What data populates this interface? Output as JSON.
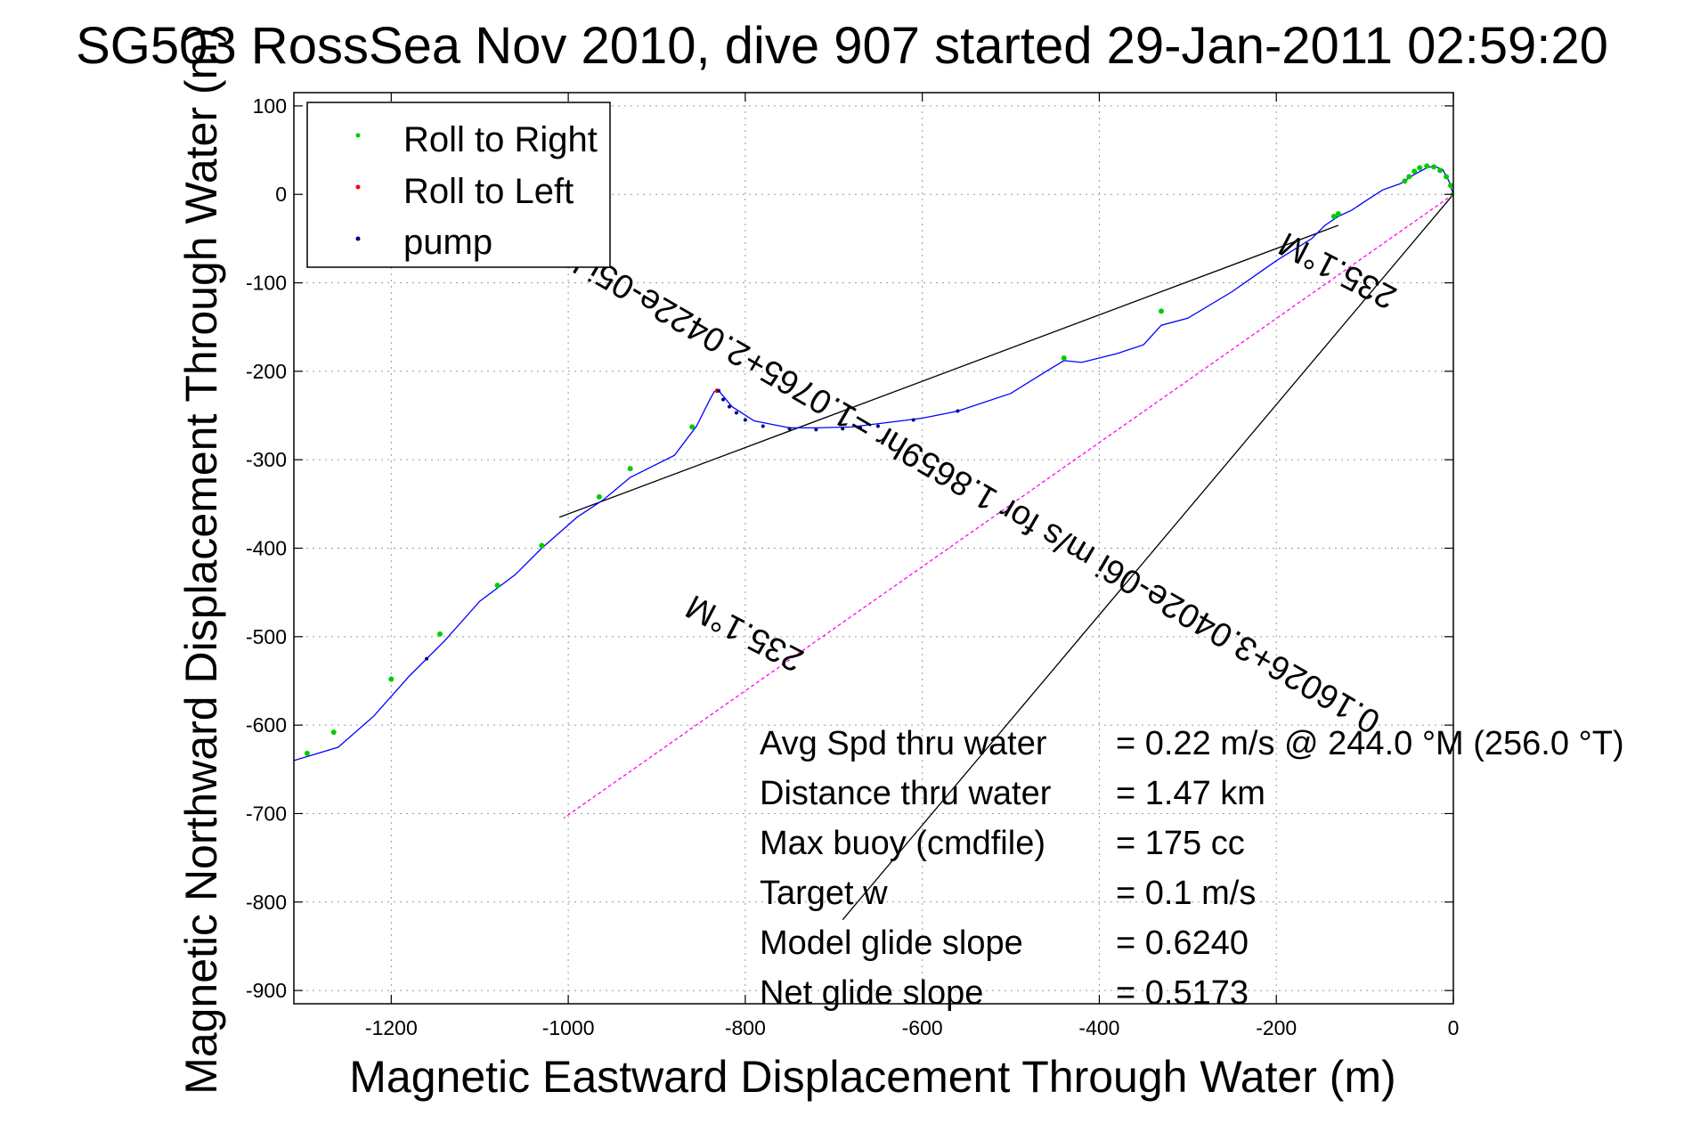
{
  "figure": {
    "title": "SG503 RossSea Nov 2010, dive 907 started 29-Jan-2011 02:59:20",
    "xlabel": "Magnetic Eastward Displacement Through Water (m)",
    "ylabel": "Magnetic Northward Displacement Through Water (m)"
  },
  "colors": {
    "track": "#0000ff",
    "roll_right": "#00cc00",
    "roll_left": "#ff0000",
    "pump": "#000080",
    "heading_line": "#ff00ff",
    "axes": "#000000"
  },
  "chart_data": {
    "type": "scatter",
    "xlim": [
      -1310,
      0
    ],
    "ylim": [
      -915,
      115
    ],
    "x_ticks": [
      -1200,
      -1000,
      -800,
      -600,
      -400,
      -200,
      0
    ],
    "x_tick_labels": [
      "-1200",
      "-1000",
      "-800",
      "-600",
      "-400",
      "-200",
      "0"
    ],
    "y_ticks": [
      100,
      0,
      -100,
      -200,
      -300,
      -400,
      -500,
      -600,
      -700,
      -800,
      -900
    ],
    "y_tick_labels": [
      "100",
      "0",
      "-100",
      "-200",
      "-300",
      "-400",
      "-500",
      "-600",
      "-700",
      "-800",
      "-900"
    ],
    "grid": true,
    "legend_position": "top-left",
    "legend": [
      {
        "name": "Roll to Right",
        "color": "#00cc00"
      },
      {
        "name": "Roll to Left",
        "color": "#ff0000"
      },
      {
        "name": "pump",
        "color": "#000080"
      }
    ],
    "track": {
      "x": [
        0,
        -5,
        -12,
        -22,
        -30,
        -45,
        -60,
        -80,
        -100,
        -115,
        -130,
        -145,
        -160,
        -200,
        -250,
        -300,
        -330,
        -350,
        -380,
        -420,
        -440,
        -460,
        -500,
        -560,
        -600,
        -640,
        -680,
        -720,
        -750,
        -790,
        -815,
        -830,
        -835,
        -840,
        -855,
        -880,
        -930,
        -960,
        -990,
        -1030,
        -1060,
        -1100,
        -1140,
        -1180,
        -1220,
        -1260,
        -1310
      ],
      "y": [
        0,
        15,
        28,
        32,
        30,
        22,
        12,
        5,
        -8,
        -18,
        -25,
        -35,
        -50,
        -75,
        -110,
        -140,
        -148,
        -170,
        -180,
        -190,
        -188,
        -200,
        -225,
        -245,
        -253,
        -258,
        -263,
        -264,
        -264,
        -256,
        -240,
        -222,
        -223,
        -232,
        -262,
        -295,
        -320,
        -345,
        -365,
        -400,
        -430,
        -460,
        -505,
        -545,
        -590,
        -625,
        -640
      ]
    },
    "roll_right_points": {
      "x": [
        0,
        -3,
        -8,
        -15,
        -22,
        -30,
        -38,
        -44,
        -50,
        -55,
        -130,
        -135,
        -330,
        -440,
        -860,
        -930,
        -965,
        -1030,
        -1080,
        -1145,
        -1200,
        -1265,
        -1295
      ],
      "y": [
        0,
        10,
        20,
        27,
        31,
        32,
        30,
        26,
        20,
        15,
        -22,
        -25,
        -132,
        -185,
        -263,
        -310,
        -342,
        -397,
        -442,
        -497,
        -548,
        -608,
        -632
      ]
    },
    "roll_left_points": {
      "x": [
        -832
      ],
      "y": [
        -222
      ]
    },
    "pump_points": {
      "x": [
        -830,
        -825,
        -818,
        -810,
        -800,
        -780,
        -750,
        -720,
        -690,
        -670,
        -650,
        -610,
        -560,
        -1160
      ],
      "y": [
        -222,
        -232,
        -240,
        -247,
        -255,
        -262,
        -265,
        -266,
        -265,
        -264,
        -262,
        -255,
        -245,
        -525
      ]
    },
    "black_lines": [
      {
        "x": [
          -1010,
          -130
        ],
        "y": [
          -365,
          -35
        ]
      },
      {
        "x": [
          0,
          -690
        ],
        "y": [
          0,
          -820
        ]
      }
    ],
    "heading_line": {
      "x": [
        0,
        -1005
      ],
      "y": [
        0,
        -705
      ]
    },
    "rotated_labels": [
      {
        "text": "235.1°M",
        "x": -125,
        "y": -75,
        "angle_deg": 207.5,
        "anchor": "middle"
      },
      {
        "text": "0.16026+3.0402e-06i m/s for 1.8659hr =1.0765+2.0422e-05i km",
        "x": -550,
        "y": -315,
        "angle_deg": 210.2,
        "anchor": "middle"
      },
      {
        "text": "235.1°M",
        "x": -795,
        "y": -485,
        "angle_deg": 207.5,
        "anchor": "middle"
      }
    ],
    "stats": [
      {
        "label": "Avg Spd thru water",
        "value": "=  0.22 m/s @ 244.0 °M (256.0 °T)"
      },
      {
        "label": "Distance thru water",
        "value": "=  1.47 km"
      },
      {
        "label": "Max buoy (cmdfile)",
        "value": "= 175 cc"
      },
      {
        "label": "Target w",
        "value": "= 0.1 m/s"
      },
      {
        "label": "Model glide slope",
        "value": "= 0.6240"
      },
      {
        "label": "Net glide slope",
        "value": "= 0.5173"
      }
    ]
  }
}
